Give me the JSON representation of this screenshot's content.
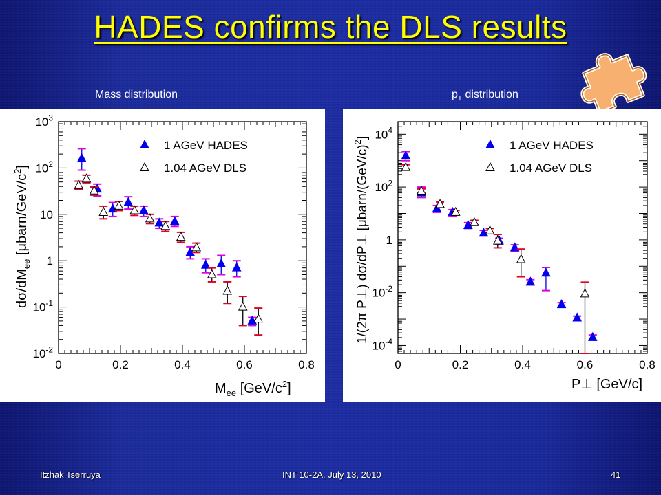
{
  "slide": {
    "title": "HADES confirms the DLS results",
    "footer_left": "Itzhak Tserruya",
    "footer_center": "INT 10-2A, July 13, 2010",
    "footer_right": "41",
    "decoration_icon": "puzzle-piece-icon",
    "colors": {
      "background": "#1b2ca2",
      "title": "#ffff00",
      "puzzle": "#f7b070",
      "hades": "#0000ee",
      "dls": "#000000",
      "err_red": "#e0002a",
      "err_magenta": "#e000e0"
    }
  },
  "left_caption": "Mass distribution",
  "right_caption_main": "p",
  "right_caption_sub": "T",
  "right_caption_rest": " distribution",
  "chart_data": [
    {
      "type": "scatter",
      "subtitle": "Mass distribution",
      "xlabel": "M_ee [GeV/c^2]",
      "ylabel": "dσ/dM_ee [μbarn/GeV/c^2]",
      "xlim": [
        0,
        0.8
      ],
      "ylim": [
        0.01,
        1000
      ],
      "yscale": "log",
      "x_ticks": [
        "0",
        "0.2",
        "0.4",
        "0.6",
        "0.8"
      ],
      "y_ticks": [
        "10^-2",
        "10^-1",
        "1",
        "10",
        "10^2",
        "10^3"
      ],
      "legend": [
        "1 AGeV   HADES",
        "1.04 AGeV   DLS"
      ],
      "legend_position": "top-right",
      "series": [
        {
          "name": "1 AGeV   HADES",
          "marker": "filled-triangle",
          "points": [
            {
              "x": 0.075,
              "y": 160,
              "err_lo": 90,
              "err_hi": 260
            },
            {
              "x": 0.125,
              "y": 35,
              "err_lo": 25,
              "err_hi": 45
            },
            {
              "x": 0.175,
              "y": 13,
              "err_lo": 9,
              "err_hi": 18
            },
            {
              "x": 0.225,
              "y": 18,
              "err_lo": 13,
              "err_hi": 24
            },
            {
              "x": 0.275,
              "y": 12,
              "err_lo": 9,
              "err_hi": 15
            },
            {
              "x": 0.325,
              "y": 6.5,
              "err_lo": 5,
              "err_hi": 8
            },
            {
              "x": 0.375,
              "y": 7,
              "err_lo": 5.5,
              "err_hi": 9
            },
            {
              "x": 0.425,
              "y": 1.5,
              "err_lo": 1.1,
              "err_hi": 2
            },
            {
              "x": 0.475,
              "y": 0.8,
              "err_lo": 0.55,
              "err_hi": 1.1
            },
            {
              "x": 0.525,
              "y": 0.85,
              "err_lo": 0.5,
              "err_hi": 1.3
            },
            {
              "x": 0.575,
              "y": 0.7,
              "err_lo": 0.45,
              "err_hi": 1.0
            },
            {
              "x": 0.625,
              "y": 0.05,
              "err_lo": 0.04,
              "err_hi": 0.06
            }
          ]
        },
        {
          "name": "1.04 AGeV   DLS",
          "marker": "open-triangle",
          "points": [
            {
              "x": 0.065,
              "y": 42,
              "err_lo": 35,
              "err_hi": 52
            },
            {
              "x": 0.09,
              "y": 58,
              "err_lo": 48,
              "err_hi": 70
            },
            {
              "x": 0.115,
              "y": 32,
              "err_lo": 26,
              "err_hi": 39
            },
            {
              "x": 0.145,
              "y": 11,
              "err_lo": 8,
              "err_hi": 15
            },
            {
              "x": 0.195,
              "y": 15,
              "err_lo": 12,
              "err_hi": 19
            },
            {
              "x": 0.245,
              "y": 12,
              "err_lo": 9.5,
              "err_hi": 15
            },
            {
              "x": 0.295,
              "y": 8,
              "err_lo": 6.3,
              "err_hi": 10
            },
            {
              "x": 0.345,
              "y": 5.5,
              "err_lo": 4.3,
              "err_hi": 7
            },
            {
              "x": 0.395,
              "y": 3.2,
              "err_lo": 2.5,
              "err_hi": 4.1
            },
            {
              "x": 0.445,
              "y": 1.9,
              "err_lo": 1.5,
              "err_hi": 2.4
            },
            {
              "x": 0.495,
              "y": 0.5,
              "err_lo": 0.35,
              "err_hi": 0.7
            },
            {
              "x": 0.545,
              "y": 0.22,
              "err_lo": 0.12,
              "err_hi": 0.35
            },
            {
              "x": 0.595,
              "y": 0.1,
              "err_lo": 0.04,
              "err_hi": 0.17
            },
            {
              "x": 0.645,
              "y": 0.055,
              "err_lo": 0.025,
              "err_hi": 0.095
            }
          ]
        }
      ]
    },
    {
      "type": "scatter",
      "subtitle": "pT distribution",
      "xlabel": "P⊥ [GeV/c]",
      "ylabel": "1/(2π P⊥) dσ/dP⊥ [μbarn/(GeV/c)^2]",
      "xlim": [
        0,
        0.8
      ],
      "ylim": [
        5e-05,
        30000
      ],
      "yscale": "log",
      "x_ticks": [
        "0",
        "0.2",
        "0.4",
        "0.6",
        "0.8"
      ],
      "y_ticks": [
        "10^-4",
        "10^-2",
        "1",
        "10^2",
        "10^4"
      ],
      "legend": [
        "1 AGeV   HADES",
        "1.04 AGeV   DLS"
      ],
      "legend_position": "top-right",
      "series": [
        {
          "name": "1 AGeV   HADES",
          "marker": "filled-triangle",
          "points": [
            {
              "x": 0.025,
              "y": 1500,
              "err_lo": 1000,
              "err_hi": 2200
            },
            {
              "x": 0.075,
              "y": 60,
              "err_lo": 40,
              "err_hi": 100
            },
            {
              "x": 0.125,
              "y": 15,
              "err_lo": 11,
              "err_hi": 20
            },
            {
              "x": 0.175,
              "y": 11,
              "err_lo": 8,
              "err_hi": 14
            },
            {
              "x": 0.225,
              "y": 3.5,
              "err_lo": 2.7,
              "err_hi": 4.5
            },
            {
              "x": 0.275,
              "y": 1.8,
              "err_lo": 1.4,
              "err_hi": 2.3
            },
            {
              "x": 0.325,
              "y": 0.9,
              "err_lo": 0.7,
              "err_hi": 1.15
            },
            {
              "x": 0.375,
              "y": 0.5,
              "err_lo": 0.38,
              "err_hi": 0.65
            },
            {
              "x": 0.425,
              "y": 0.025,
              "err_lo": 0.02,
              "err_hi": 0.031
            },
            {
              "x": 0.475,
              "y": 0.055,
              "err_lo": 0.012,
              "err_hi": 0.09
            },
            {
              "x": 0.525,
              "y": 0.0035,
              "err_lo": 0.0029,
              "err_hi": 0.0042
            },
            {
              "x": 0.575,
              "y": 0.0011,
              "err_lo": 0.0009,
              "err_hi": 0.0013
            },
            {
              "x": 0.625,
              "y": 0.0002,
              "err_lo": 0.00016,
              "err_hi": 0.00025
            }
          ]
        },
        {
          "name": "1.04 AGeV   DLS",
          "marker": "open-triangle",
          "points": [
            {
              "x": 0.025,
              "y": 550,
              "err_lo": 450,
              "err_hi": 700
            },
            {
              "x": 0.075,
              "y": 70,
              "err_lo": 58,
              "err_hi": 85
            },
            {
              "x": 0.135,
              "y": 22,
              "err_lo": 18,
              "err_hi": 27
            },
            {
              "x": 0.185,
              "y": 11,
              "err_lo": 9,
              "err_hi": 13
            },
            {
              "x": 0.245,
              "y": 4.5,
              "err_lo": 3.7,
              "err_hi": 5.5
            },
            {
              "x": 0.295,
              "y": 2.2,
              "err_lo": 1.8,
              "err_hi": 2.7
            },
            {
              "x": 0.32,
              "y": 0.9,
              "err_lo": 0.5,
              "err_hi": 1.6
            },
            {
              "x": 0.395,
              "y": 0.18,
              "err_lo": 0.04,
              "err_hi": 0.45
            },
            {
              "x": 0.6,
              "y": 0.009,
              "err_lo": 5e-05,
              "err_hi": 0.025
            }
          ]
        }
      ]
    }
  ]
}
